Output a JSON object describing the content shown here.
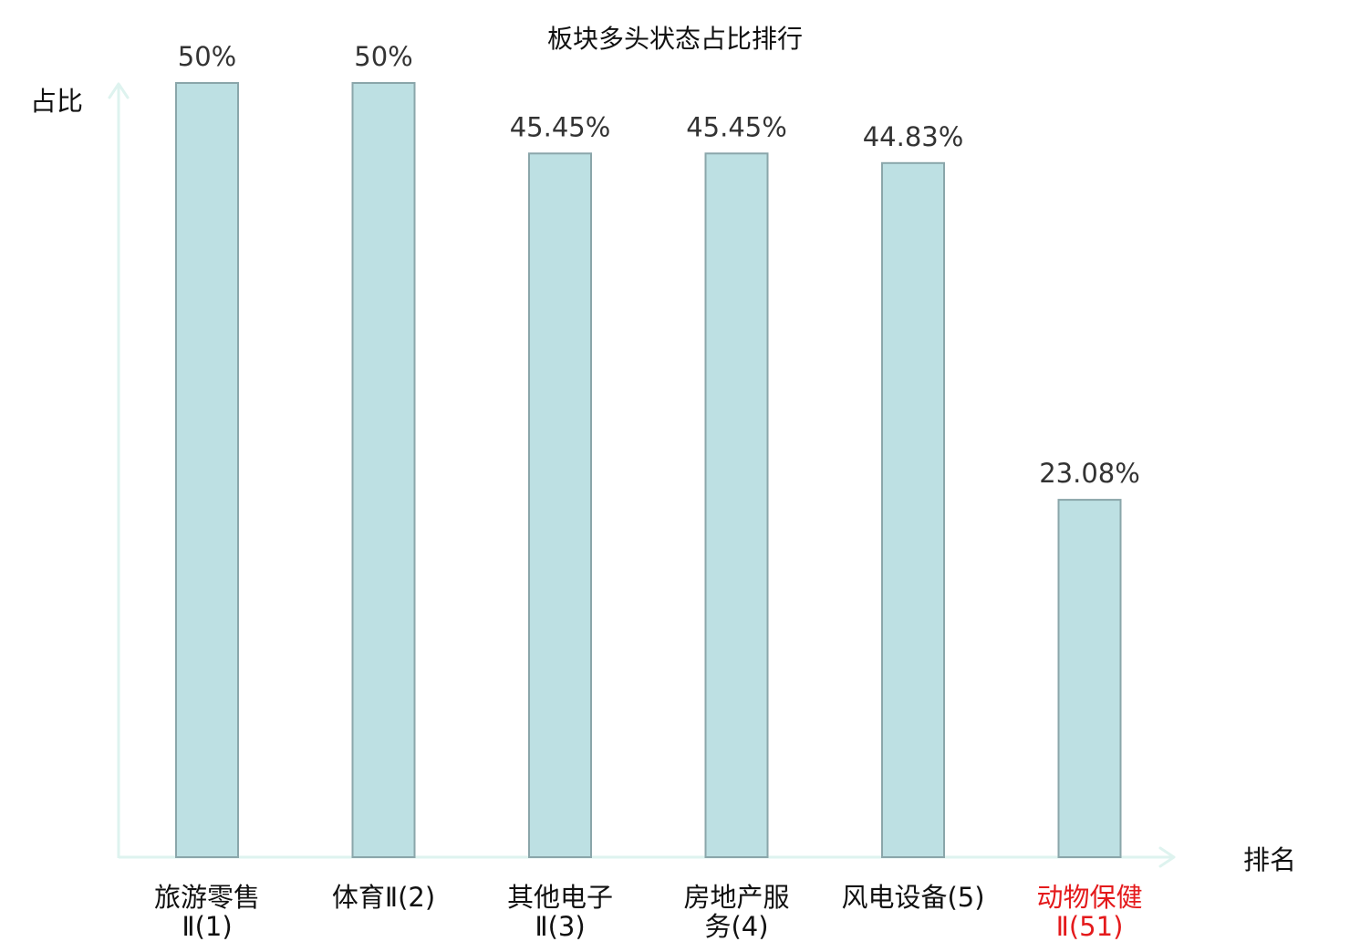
{
  "chart_data": {
    "type": "bar",
    "title": "板块多头状态占比排行",
    "ylabel": "占比",
    "xlabel": "排名",
    "categories": [
      {
        "lines": [
          "旅游零售",
          "Ⅱ(1)"
        ],
        "highlight": false
      },
      {
        "lines": [
          "体育Ⅱ(2)"
        ],
        "highlight": false
      },
      {
        "lines": [
          "其他电子",
          "Ⅱ(3)"
        ],
        "highlight": false
      },
      {
        "lines": [
          "房地产服",
          "务(4)"
        ],
        "highlight": false
      },
      {
        "lines": [
          "风电设备(5)"
        ],
        "highlight": false
      },
      {
        "lines": [
          "动物保健",
          "Ⅱ(51)"
        ],
        "highlight": true
      }
    ],
    "values": [
      50,
      50,
      45.45,
      45.45,
      44.83,
      23.08
    ],
    "value_labels": [
      "50%",
      "50%",
      "45.45%",
      "45.45%",
      "44.83%",
      "23.08%"
    ],
    "ylim": [
      0,
      50
    ],
    "grid": false,
    "legend": "none",
    "colors": {
      "bar_fill": "#bde0e3",
      "bar_stroke": "#8aa6aa",
      "axis": "#def3ef",
      "text": "#333333",
      "label_text": "#111111",
      "highlight": "#e41a1c"
    }
  }
}
